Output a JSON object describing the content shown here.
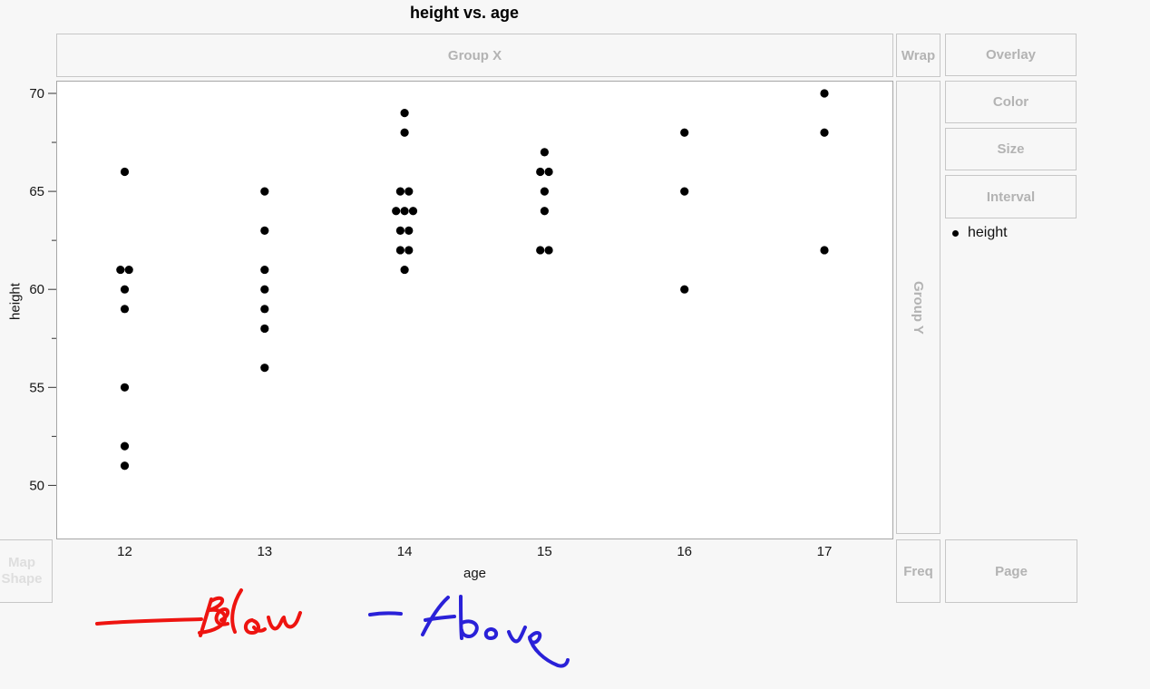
{
  "title": "height vs. age",
  "zones": {
    "group_x": "Group X",
    "wrap": "Wrap",
    "overlay": "Overlay",
    "color": "Color",
    "size": "Size",
    "interval": "Interval",
    "group_y": "Group Y",
    "freq": "Freq",
    "page": "Page",
    "map_shape_line1": "Map",
    "map_shape_line2": "Shape"
  },
  "legend": {
    "label": "height",
    "marker": "filled-black-dot"
  },
  "annotations": {
    "below": {
      "text": "Below",
      "color": "#ee1410"
    },
    "above": {
      "text": "Above",
      "color": "#2a21d8"
    }
  },
  "chart_data": {
    "type": "scatter",
    "title": "height vs. age",
    "xlabel": "age",
    "ylabel": "height",
    "x_ticks": [
      12,
      13,
      14,
      15,
      16,
      17
    ],
    "y_ticks": [
      70,
      65,
      60,
      55,
      50
    ],
    "y_minor_ticks": [
      67.5,
      62.5,
      57.5,
      52.5
    ],
    "xlim": [
      11.5,
      17.5
    ],
    "ylim": [
      47.2,
      70.6
    ],
    "grid": "off",
    "legend_position": "right",
    "marker_color": "#000000",
    "series": [
      {
        "age": 12,
        "heights": [
          66,
          61,
          61,
          60,
          59,
          55,
          52,
          51
        ]
      },
      {
        "age": 13,
        "heights": [
          65,
          63,
          61,
          60,
          59,
          58,
          56
        ]
      },
      {
        "age": 14,
        "heights": [
          69,
          68,
          65,
          65,
          64,
          64,
          64,
          63,
          63,
          62,
          62,
          61
        ]
      },
      {
        "age": 15,
        "heights": [
          67,
          66,
          66,
          65,
          64,
          62,
          62
        ]
      },
      {
        "age": 16,
        "heights": [
          68,
          65,
          60
        ]
      },
      {
        "age": 17,
        "heights": [
          70,
          68,
          62
        ]
      }
    ]
  }
}
